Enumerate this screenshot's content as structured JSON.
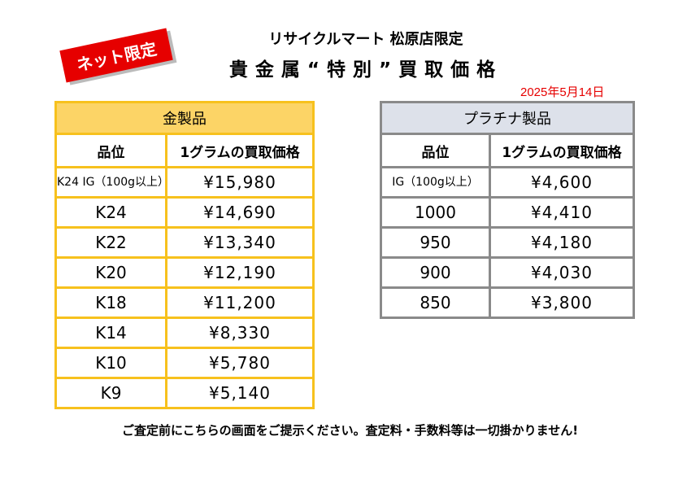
{
  "badge": "ネット限定",
  "store_name": "リサイクルマート 松原店限定",
  "headline": "貴金属“特別”買取価格",
  "date": "2025年5月14日",
  "gold": {
    "title": "金製品",
    "col_grade": "品位",
    "col_price": "1グラムの買取価格",
    "rows": [
      {
        "grade": "K24 IG（100g以上）",
        "price": "¥15,980"
      },
      {
        "grade": "K24",
        "price": "¥14,690"
      },
      {
        "grade": "K22",
        "price": "¥13,340"
      },
      {
        "grade": "K20",
        "price": "¥12,190"
      },
      {
        "grade": "K18",
        "price": "¥11,200"
      },
      {
        "grade": "K14",
        "price": "¥8,330"
      },
      {
        "grade": "K10",
        "price": "¥5,780"
      },
      {
        "grade": "K9",
        "price": "¥5,140"
      }
    ]
  },
  "platinum": {
    "title": "プラチナ製品",
    "col_grade": "品位",
    "col_price": "1グラムの買取価格",
    "rows": [
      {
        "grade": "IG（100g以上）",
        "price": "¥4,600"
      },
      {
        "grade": "1000",
        "price": "¥4,410"
      },
      {
        "grade": "950",
        "price": "¥4,180"
      },
      {
        "grade": "900",
        "price": "¥4,030"
      },
      {
        "grade": "850",
        "price": "¥3,800"
      }
    ]
  },
  "note": "ご査定前にこちらの画面をご提示ください。査定料・手数料等は一切掛かりません!",
  "colors": {
    "accent_red": "#e60000",
    "gold_header": "#fcd466",
    "gold_border": "#f7c11d",
    "platinum_header": "#dde1ea",
    "platinum_border": "#8a8a8a"
  }
}
